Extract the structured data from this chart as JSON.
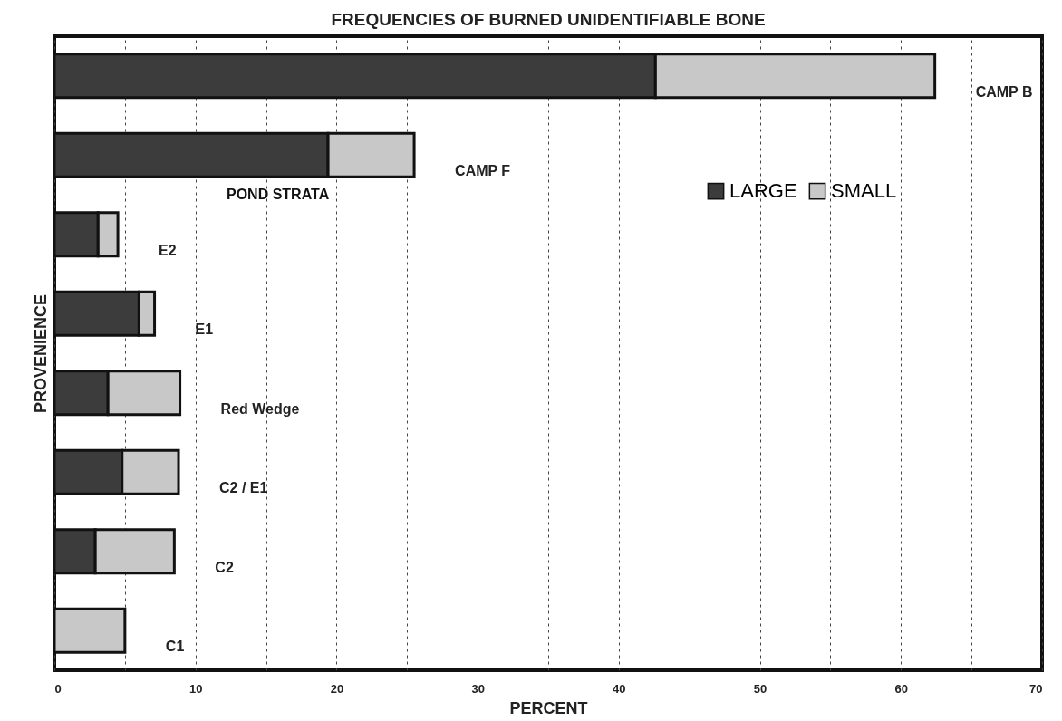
{
  "chart_data": {
    "type": "bar",
    "orientation": "horizontal",
    "stacked": true,
    "title": "FREQUENCIES OF BURNED UNIDENTIFIABLE BONE",
    "xlabel": "PERCENT",
    "ylabel": "PROVENIENCE",
    "categories": [
      "CAMP B",
      "CAMP F",
      "E2",
      "E1",
      "Red Wedge",
      "C2 / E1",
      "C2",
      "C1"
    ],
    "series": [
      {
        "name": "LARGE",
        "color": "#3c3c3c",
        "values": [
          42.6,
          19.4,
          3.1,
          6.0,
          3.8,
          4.8,
          2.9,
          null
        ]
      },
      {
        "name": "SMALL",
        "color": "#c8c8c8",
        "values": [
          19.8,
          6.1,
          1.4,
          1.1,
          5.1,
          4.0,
          5.6,
          5.0
        ]
      }
    ],
    "xlim": [
      0,
      70
    ],
    "xticks": [
      0,
      {
        "value": 5,
        "label": null
      },
      10,
      {
        "value": 15,
        "label": null
      },
      20,
      {
        "value": 25,
        "label": null
      },
      30,
      {
        "value": 35,
        "label": null
      },
      40,
      {
        "value": 45,
        "label": null
      },
      50,
      {
        "value": 55,
        "label": null
      },
      60,
      {
        "value": 65,
        "label": null
      },
      70
    ],
    "grid": "x",
    "legend": "top right",
    "annotations": [
      "POND STRATA"
    ]
  }
}
